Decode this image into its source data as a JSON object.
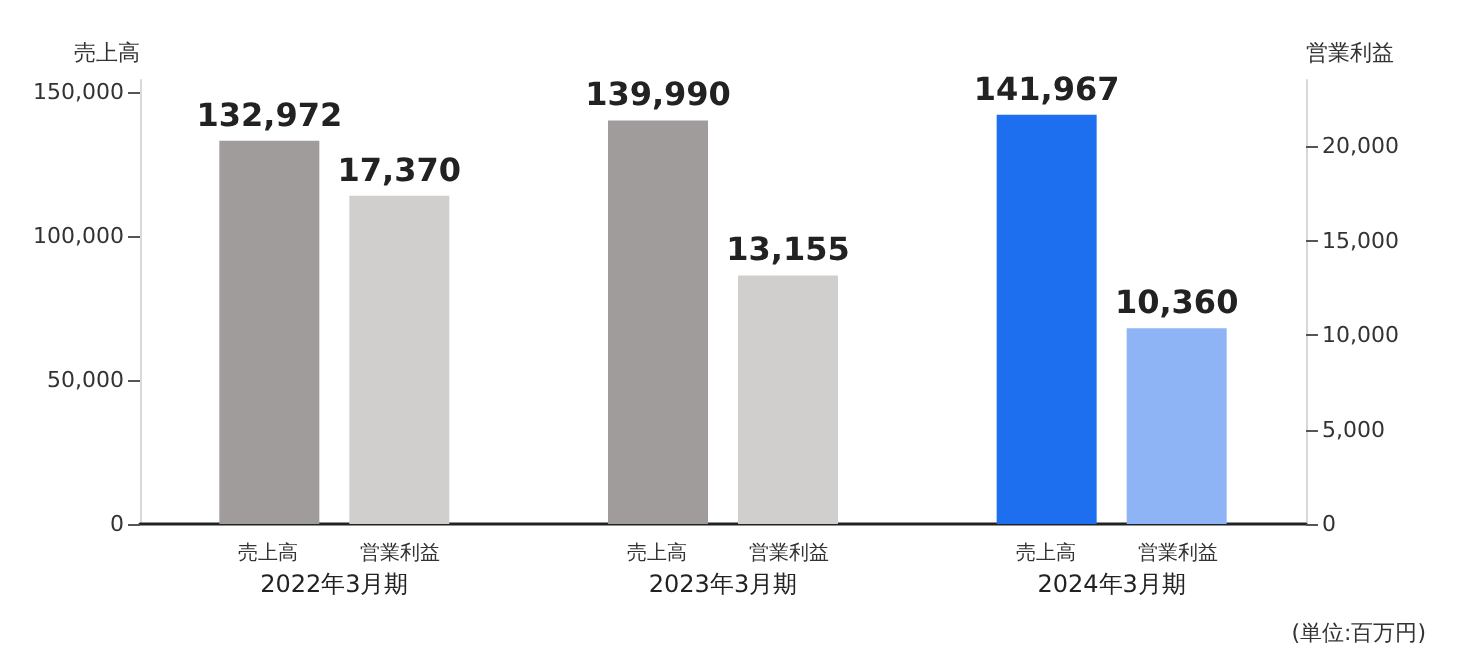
{
  "chart_data": {
    "type": "bar",
    "categories": [
      "2022年3月期",
      "2023年3月期",
      "2024年3月期"
    ],
    "series": [
      {
        "name": "売上高",
        "colors": [
          "#a09c9b",
          "#a09c9b",
          "#1e6ef0"
        ],
        "values": [
          132972,
          139990,
          141967
        ],
        "value_labels": [
          "132,972",
          "139,990",
          "141,967"
        ]
      },
      {
        "name": "営業利益",
        "axis": "y2",
        "colors": [
          "#d0cfce",
          "#d0cfce",
          "#8fb4f5"
        ],
        "values": [
          17370,
          13155,
          10360
        ],
        "value_labels": [
          "17,370",
          "13,155",
          "10,360"
        ]
      }
    ],
    "ylabel": "売上高",
    "y2label": "営業利益",
    "ylim": [
      0,
      154000
    ],
    "yticks": [
      0,
      {
        "value": 50000,
        "label": "50,000"
      },
      {
        "value": 100000,
        "label": "100,000"
      },
      {
        "value": 150000,
        "label": "150,000"
      }
    ],
    "y2lim": [
      0,
      23500
    ],
    "y2ticks": [
      0,
      {
        "value": 5000,
        "label": "5,000"
      },
      {
        "value": 10000,
        "label": "10,000"
      },
      {
        "value": 15000,
        "label": "15,000"
      },
      {
        "value": 20000,
        "label": "20,000"
      }
    ],
    "grid": false,
    "legend": false,
    "annotations": [
      "(単位:百万円)"
    ]
  }
}
